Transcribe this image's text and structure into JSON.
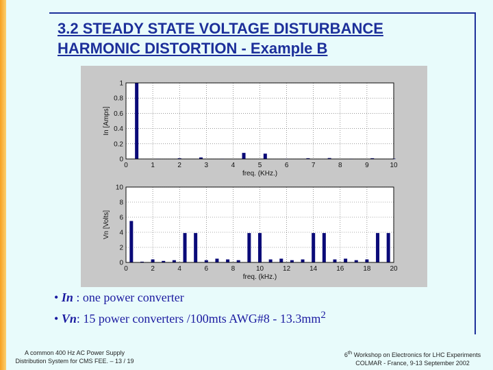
{
  "slide": {
    "title_line1": "3.2 STEADY STATE VOLTAGE DISTURBANCE",
    "title_line2": "HARMONIC DISTORTION - Example B",
    "accent_color": "#1c2f9a",
    "side_bar_color": "#f7a020",
    "background_color": "#e8fbfb"
  },
  "bullets": [
    {
      "term": "In",
      "text": " : one power converter"
    },
    {
      "term": "Vn",
      "text": ": 15 power converters /100mts AWG#8 - 13.3mm",
      "sup": "2"
    }
  ],
  "footer": {
    "left_line1": "A common 400 Hz AC Power Supply",
    "left_line2": "Distribution System for CMS FEE. – 13 / 19",
    "right_line1_sup": "th",
    "right_line1_num": "6",
    "right_line1_rest": " Workshop on Electronics for LHC Experiments",
    "right_line2": "COLMAR - France, 9-13 September 2002"
  },
  "chart_data": [
    {
      "type": "bar",
      "xlabel": "freq. (KHz.)",
      "ylabel": "In [Amps]",
      "xlim": [
        0,
        10
      ],
      "ylim": [
        0,
        1
      ],
      "xticks": [
        "0",
        "1",
        "2",
        "3",
        "4",
        "5",
        "6",
        "7",
        "8",
        "9",
        "10"
      ],
      "yticks": [
        "0",
        "0.2",
        "0.4",
        "0.6",
        "0.8",
        "1"
      ],
      "grid": true,
      "bar_color": "#0a0a78",
      "x": [
        0.4,
        1.2,
        2.0,
        2.8,
        3.6,
        4.4,
        5.2,
        6.0,
        6.8,
        7.6,
        8.4,
        9.2,
        10.0
      ],
      "values": [
        1.0,
        0.004,
        0.01,
        0.02,
        0.004,
        0.08,
        0.07,
        0.004,
        0.01,
        0.012,
        0.004,
        0.01,
        0.005
      ]
    },
    {
      "type": "bar",
      "xlabel": "freq. (kHz.)",
      "ylabel": "Vn [Volts]",
      "xlim": [
        0,
        20
      ],
      "ylim": [
        0,
        10
      ],
      "xticks": [
        "0",
        "2",
        "4",
        "6",
        "8",
        "10",
        "12",
        "14",
        "16",
        "18",
        "20"
      ],
      "yticks": [
        "0",
        "2",
        "4",
        "6",
        "8",
        "10"
      ],
      "grid": true,
      "bar_color": "#0a0a78",
      "x": [
        0.4,
        1.2,
        2.0,
        2.8,
        3.6,
        4.4,
        5.2,
        6.0,
        6.8,
        7.6,
        8.4,
        9.2,
        10.0,
        10.8,
        11.6,
        12.4,
        13.2,
        14.0,
        14.8,
        15.6,
        16.4,
        17.2,
        18.0,
        18.8,
        19.6
      ],
      "values": [
        5.5,
        0.1,
        0.4,
        0.2,
        0.3,
        3.9,
        3.9,
        0.3,
        0.5,
        0.4,
        0.3,
        3.9,
        3.9,
        0.4,
        0.5,
        0.3,
        0.4,
        3.9,
        3.9,
        0.4,
        0.5,
        0.3,
        0.4,
        3.9,
        3.9
      ]
    }
  ]
}
